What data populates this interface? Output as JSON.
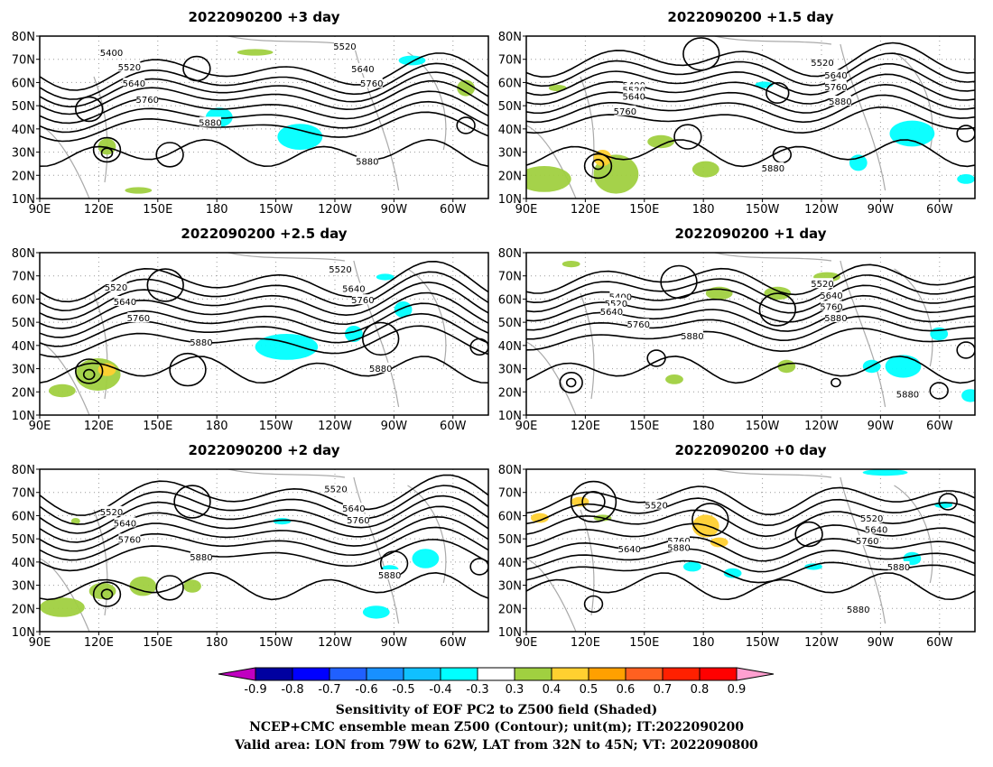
{
  "panels": [
    {
      "id": "p1",
      "title": "2022090200 +3 day"
    },
    {
      "id": "p2",
      "title": "2022090200 +1.5 day"
    },
    {
      "id": "p3",
      "title": "2022090200 +2.5 day"
    },
    {
      "id": "p4",
      "title": "2022090200 +1 day"
    },
    {
      "id": "p5",
      "title": "2022090200 +2 day"
    },
    {
      "id": "p6",
      "title": "2022090200 +0 day"
    }
  ],
  "axes": {
    "lat_ticks": [
      "80N",
      "70N",
      "60N",
      "50N",
      "40N",
      "30N",
      "20N",
      "10N"
    ],
    "lon_ticks": [
      "90E",
      "120E",
      "150E",
      "180",
      "150W",
      "120W",
      "90W",
      "60W"
    ]
  },
  "contour_levels": [
    "5400",
    "5520",
    "5640",
    "5760",
    "5880"
  ],
  "colorbar": {
    "labels": [
      "-0.9",
      "-0.8",
      "-0.7",
      "-0.6",
      "-0.5",
      "-0.4",
      "-0.3",
      "0.3",
      "0.4",
      "0.5",
      "0.6",
      "0.7",
      "0.8",
      "0.9"
    ],
    "colors": [
      "#c000c0",
      "#0000a0",
      "#0000ff",
      "#2060ff",
      "#1890ff",
      "#10c0ff",
      "#00ffff",
      "#ffffff",
      "#a0d040",
      "#ffd030",
      "#ffa000",
      "#ff6020",
      "#ff2000",
      "#ff0000",
      "#ffa0d0"
    ]
  },
  "caption": {
    "line1": "Sensitivity of EOF PC2 to Z500 field (Shaded)",
    "line2": "NCEP+CMC ensemble mean Z500 (Contour); unit(m); IT:2022090200",
    "line3": "Valid area: LON from 79W to 62W, LAT from 32N to 45N; VT: 2022090800"
  }
}
